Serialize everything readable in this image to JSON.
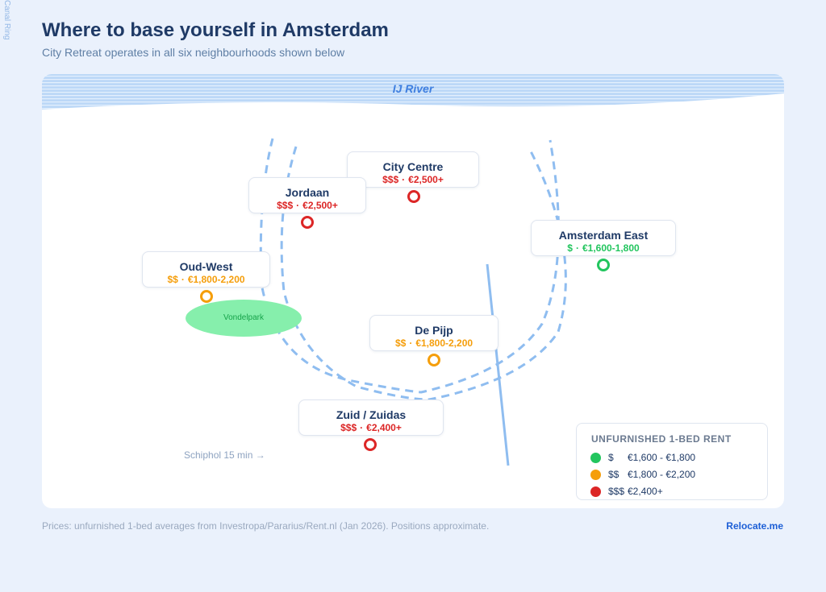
{
  "side_label": "Canal Ring",
  "title": "Where to base yourself in Amsterdam",
  "subtitle": "City Retreat operates in all six neighbourhoods shown below",
  "map": {
    "river_label": "IJ River",
    "park_label": "Vondelpark",
    "schiphol_label": "Schiphol 15 min →",
    "neighbourhoods": [
      {
        "name": "City Centre",
        "tier": "$$$",
        "range": "€2,500+",
        "tier_color": "#dc2626"
      },
      {
        "name": "Jordaan",
        "tier": "$$$",
        "range": "€2,500+",
        "tier_color": "#dc2626"
      },
      {
        "name": "Amsterdam East",
        "tier": "$",
        "range": "€1,600-1,800",
        "tier_color": "#22c55e"
      },
      {
        "name": "Oud-West",
        "tier": "$$",
        "range": "€1,800-2,200",
        "tier_color": "#f59e0b"
      },
      {
        "name": "De Pijp",
        "tier": "$$",
        "range": "€1,800-2,200",
        "tier_color": "#f59e0b"
      },
      {
        "name": "Zuid / Zuidas",
        "tier": "$$$",
        "range": "€2,400+",
        "tier_color": "#dc2626"
      }
    ]
  },
  "legend": {
    "title": "UNFURNISHED 1-BED RENT",
    "items": [
      {
        "tier": "$",
        "range": "€1,600 - €1,800",
        "color": "#22c55e"
      },
      {
        "tier": "$$",
        "range": "€1,800 - €2,200",
        "color": "#f59e0b"
      },
      {
        "tier": "$$$",
        "range": "€2,400+",
        "color": "#dc2626"
      }
    ]
  },
  "footnote": "Prices: unfurnished 1-bed averages from Investropa/Pararius/Rent.nl (Jan 2026). Positions approximate.",
  "brand": "Relocate.me"
}
